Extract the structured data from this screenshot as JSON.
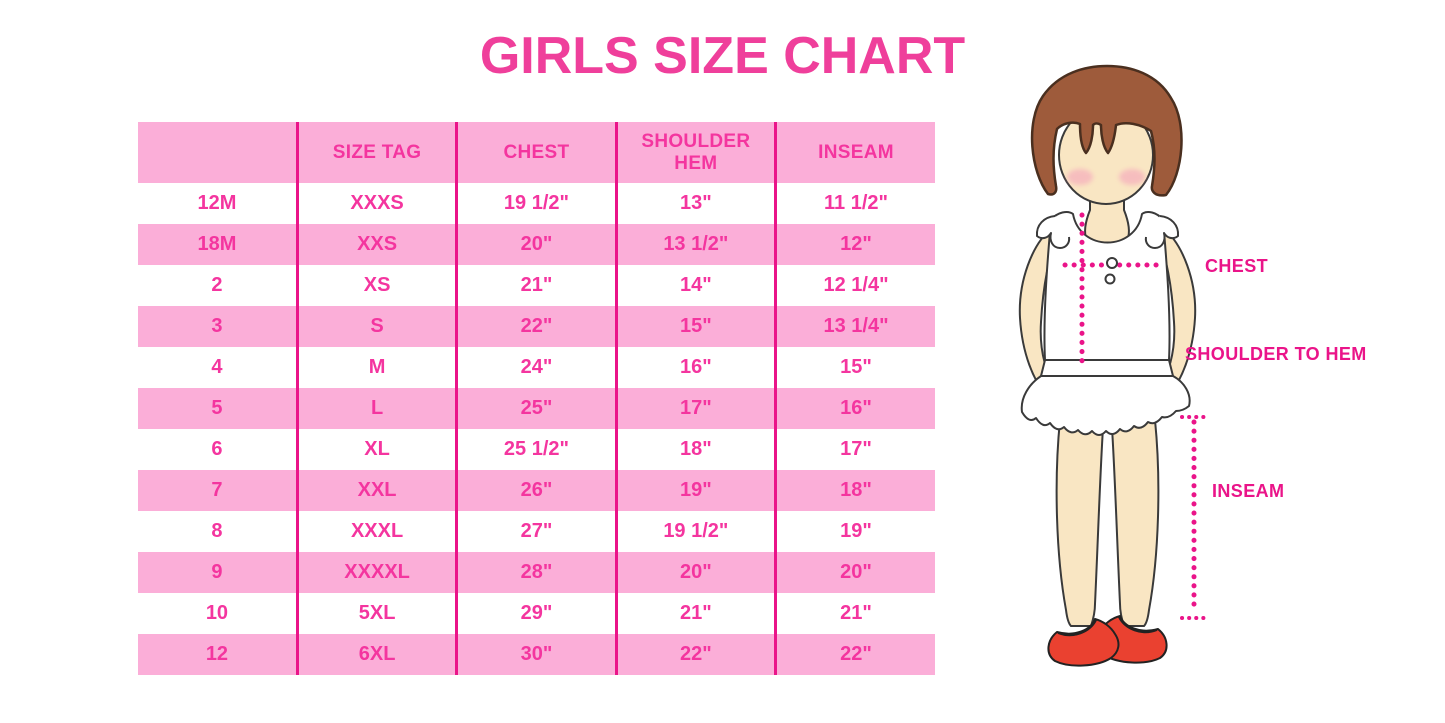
{
  "title": "GIRLS SIZE CHART",
  "chart_data": {
    "type": "table",
    "title": "GIRLS SIZE CHART",
    "columns": [
      "",
      "SIZE TAG",
      "CHEST",
      "SHOULDER HEM",
      "INSEAM"
    ],
    "rows": [
      [
        "12M",
        "XXXS",
        "19 1/2\"",
        "13\"",
        "11 1/2\""
      ],
      [
        "18M",
        "XXS",
        "20\"",
        "13 1/2\"",
        "12\""
      ],
      [
        "2",
        "XS",
        "21\"",
        "14\"",
        "12 1/4\""
      ],
      [
        "3",
        "S",
        "22\"",
        "15\"",
        "13 1/4\""
      ],
      [
        "4",
        "M",
        "24\"",
        "16\"",
        "15\""
      ],
      [
        "5",
        "L",
        "25\"",
        "17\"",
        "16\""
      ],
      [
        "6",
        "XL",
        "25 1/2\"",
        "18\"",
        "17\""
      ],
      [
        "7",
        "XXL",
        "26\"",
        "19\"",
        "18\""
      ],
      [
        "8",
        "XXXL",
        "27\"",
        "19 1/2\"",
        "19\""
      ],
      [
        "9",
        "XXXXL",
        "28\"",
        "20\"",
        "20\""
      ],
      [
        "10",
        "5XL",
        "29\"",
        "21\"",
        "21\""
      ],
      [
        "12",
        "6XL",
        "30\"",
        "22\"",
        "22\""
      ]
    ]
  },
  "figure": {
    "chest_label": "CHEST",
    "shoulder_to_hem_label": "SHOULDER TO HEM",
    "inseam_label": "INSEAM"
  },
  "colors": {
    "title_pink": "#EF3F9B",
    "table_text_pink": "#F4359F",
    "row_pink": "#FBAED8",
    "line_magenta": "#EA1489",
    "hair_brown": "#9E5B3B",
    "skin": "#F9E6C3",
    "shoe_red": "#EA4130",
    "outline": "#3A3A3A"
  }
}
